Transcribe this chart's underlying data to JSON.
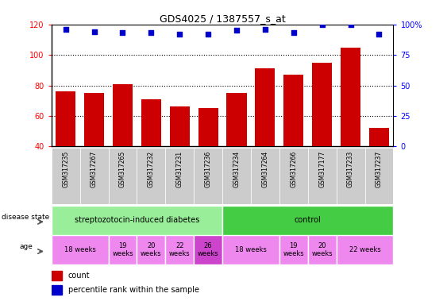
{
  "title": "GDS4025 / 1387557_s_at",
  "samples": [
    "GSM317235",
    "GSM317267",
    "GSM317265",
    "GSM317232",
    "GSM317231",
    "GSM317236",
    "GSM317234",
    "GSM317264",
    "GSM317266",
    "GSM317177",
    "GSM317233",
    "GSM317237"
  ],
  "counts": [
    76,
    75,
    81,
    71,
    66,
    65,
    75,
    91,
    87,
    95,
    105,
    52
  ],
  "percentiles": [
    96,
    94,
    93,
    93,
    92,
    92,
    95,
    96,
    93,
    100,
    100,
    92
  ],
  "ylim_left": [
    40,
    120
  ],
  "ylim_right": [
    0,
    100
  ],
  "yticks_left": [
    40,
    60,
    80,
    100,
    120
  ],
  "yticks_right": [
    0,
    25,
    50,
    75,
    100
  ],
  "bar_color": "#cc0000",
  "dot_color": "#0000cc",
  "disease_state_groups": [
    {
      "label": "streptozotocin-induced diabetes",
      "start": 0,
      "end": 6,
      "color": "#99ee99"
    },
    {
      "label": "control",
      "start": 6,
      "end": 12,
      "color": "#44cc44"
    }
  ],
  "age_groups": [
    {
      "label": "18 weeks",
      "start": 0,
      "end": 2,
      "color": "#ee88ee"
    },
    {
      "label": "19\nweeks",
      "start": 2,
      "end": 3,
      "color": "#ee88ee"
    },
    {
      "label": "20\nweeks",
      "start": 3,
      "end": 4,
      "color": "#ee88ee"
    },
    {
      "label": "22\nweeks",
      "start": 4,
      "end": 5,
      "color": "#ee88ee"
    },
    {
      "label": "26\nweeks",
      "start": 5,
      "end": 6,
      "color": "#cc44cc"
    },
    {
      "label": "18 weeks",
      "start": 6,
      "end": 8,
      "color": "#ee88ee"
    },
    {
      "label": "19\nweeks",
      "start": 8,
      "end": 9,
      "color": "#ee88ee"
    },
    {
      "label": "20\nweeks",
      "start": 9,
      "end": 10,
      "color": "#ee88ee"
    },
    {
      "label": "22 weeks",
      "start": 10,
      "end": 12,
      "color": "#ee88ee"
    }
  ],
  "legend_count_color": "#cc0000",
  "legend_pct_color": "#0000cc"
}
